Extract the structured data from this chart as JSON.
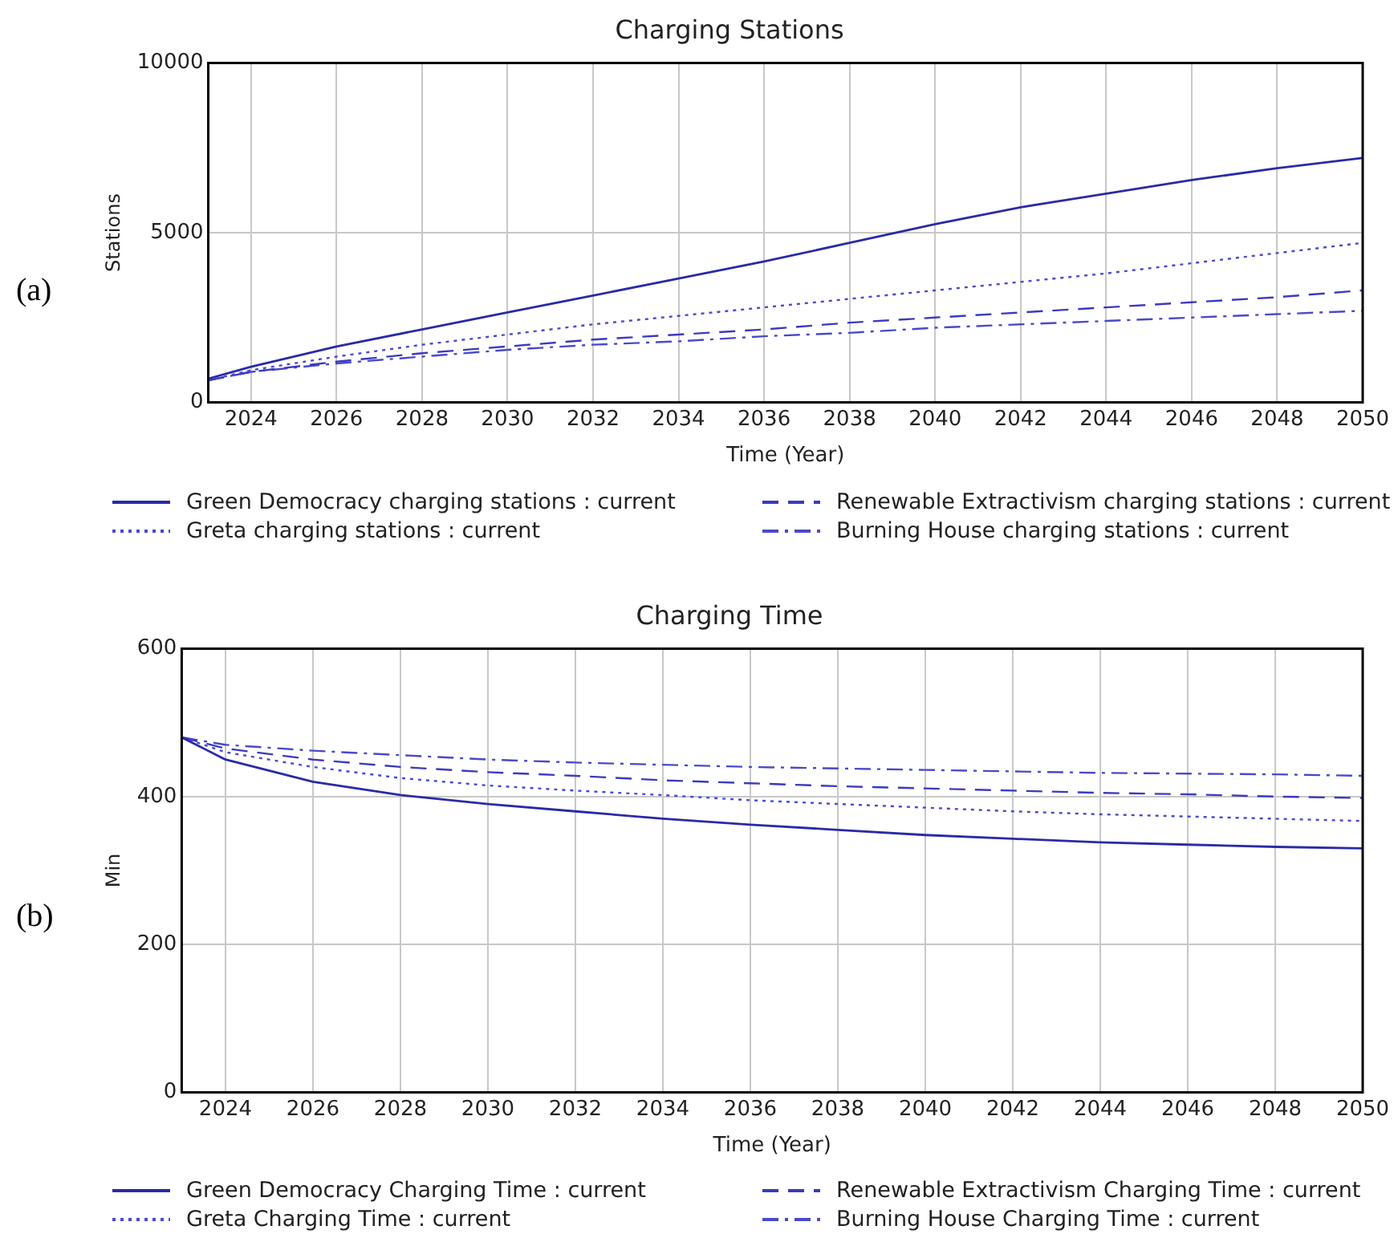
{
  "chart_data": [
    {
      "type": "line",
      "title": "Charging Stations",
      "xlabel": "Time (Year)",
      "ylabel": "Stations",
      "annotations": [
        "(a)"
      ],
      "x": [
        2023,
        2024,
        2026,
        2028,
        2030,
        2032,
        2034,
        2036,
        2038,
        2040,
        2042,
        2044,
        2046,
        2048,
        2050
      ],
      "xlim": [
        2023,
        2050
      ],
      "xticks": [
        2024,
        2026,
        2028,
        2030,
        2032,
        2034,
        2036,
        2038,
        2040,
        2042,
        2044,
        2046,
        2048,
        2050
      ],
      "ylim": [
        0,
        10000
      ],
      "yticks": [
        0,
        5000,
        10000
      ],
      "grid": true,
      "legend": "bottom",
      "marker": "none",
      "series": [
        {
          "name": "Green Democracy charging stations : current",
          "color": "#2a2aa8",
          "line_style": "solid",
          "values": [
            700,
            1050,
            1650,
            2150,
            2650,
            3150,
            3650,
            4150,
            4700,
            5250,
            5750,
            6150,
            6550,
            6900,
            7200
          ]
        },
        {
          "name": "Greta charging stations : current",
          "color": "#4a4ad0",
          "line_style": "dotted",
          "values": [
            650,
            950,
            1350,
            1700,
            2000,
            2300,
            2550,
            2800,
            3050,
            3300,
            3550,
            3800,
            4100,
            4400,
            4700
          ]
        },
        {
          "name": "Renewable Extractivism charging stations : current",
          "color": "#3a3ac0",
          "line_style": "dashed",
          "values": [
            650,
            900,
            1200,
            1450,
            1650,
            1850,
            2000,
            2150,
            2350,
            2500,
            2650,
            2800,
            2950,
            3100,
            3300
          ]
        },
        {
          "name": "Burning House charging stations : current",
          "color": "#4a4ac8",
          "line_style": "dashdot",
          "values": [
            650,
            900,
            1150,
            1350,
            1550,
            1700,
            1800,
            1950,
            2050,
            2200,
            2300,
            2400,
            2500,
            2600,
            2700
          ]
        }
      ]
    },
    {
      "type": "line",
      "title": "Charging Time",
      "xlabel": "Time (Year)",
      "ylabel": "Min",
      "annotations": [
        "(b)"
      ],
      "x": [
        2023,
        2024,
        2026,
        2028,
        2030,
        2032,
        2034,
        2036,
        2038,
        2040,
        2042,
        2044,
        2046,
        2048,
        2050
      ],
      "xlim": [
        2023,
        2050
      ],
      "xticks": [
        2024,
        2026,
        2028,
        2030,
        2032,
        2034,
        2036,
        2038,
        2040,
        2042,
        2044,
        2046,
        2048,
        2050
      ],
      "ylim": [
        0,
        600
      ],
      "yticks": [
        0,
        200,
        400,
        600
      ],
      "grid": true,
      "legend": "bottom",
      "marker": "none",
      "series": [
        {
          "name": "Green Democracy Charging Time : current",
          "color": "#2a2aa8",
          "line_style": "solid",
          "values": [
            480,
            450,
            420,
            402,
            390,
            380,
            370,
            362,
            355,
            348,
            343,
            338,
            335,
            332,
            330
          ]
        },
        {
          "name": "Greta Charging Time : current",
          "color": "#4a4ad0",
          "line_style": "dotted",
          "values": [
            480,
            460,
            440,
            425,
            415,
            408,
            402,
            395,
            390,
            385,
            380,
            376,
            373,
            370,
            367
          ]
        },
        {
          "name": "Renewable Extractivism Charging Time : current",
          "color": "#3a3ac0",
          "line_style": "dashed",
          "values": [
            480,
            465,
            450,
            440,
            433,
            428,
            422,
            418,
            414,
            411,
            408,
            405,
            403,
            400,
            398
          ]
        },
        {
          "name": "Burning House Charging Time : current",
          "color": "#4a4ac8",
          "line_style": "dashdot",
          "values": [
            480,
            470,
            462,
            456,
            450,
            446,
            443,
            440,
            438,
            436,
            434,
            432,
            431,
            430,
            428
          ]
        }
      ]
    }
  ]
}
